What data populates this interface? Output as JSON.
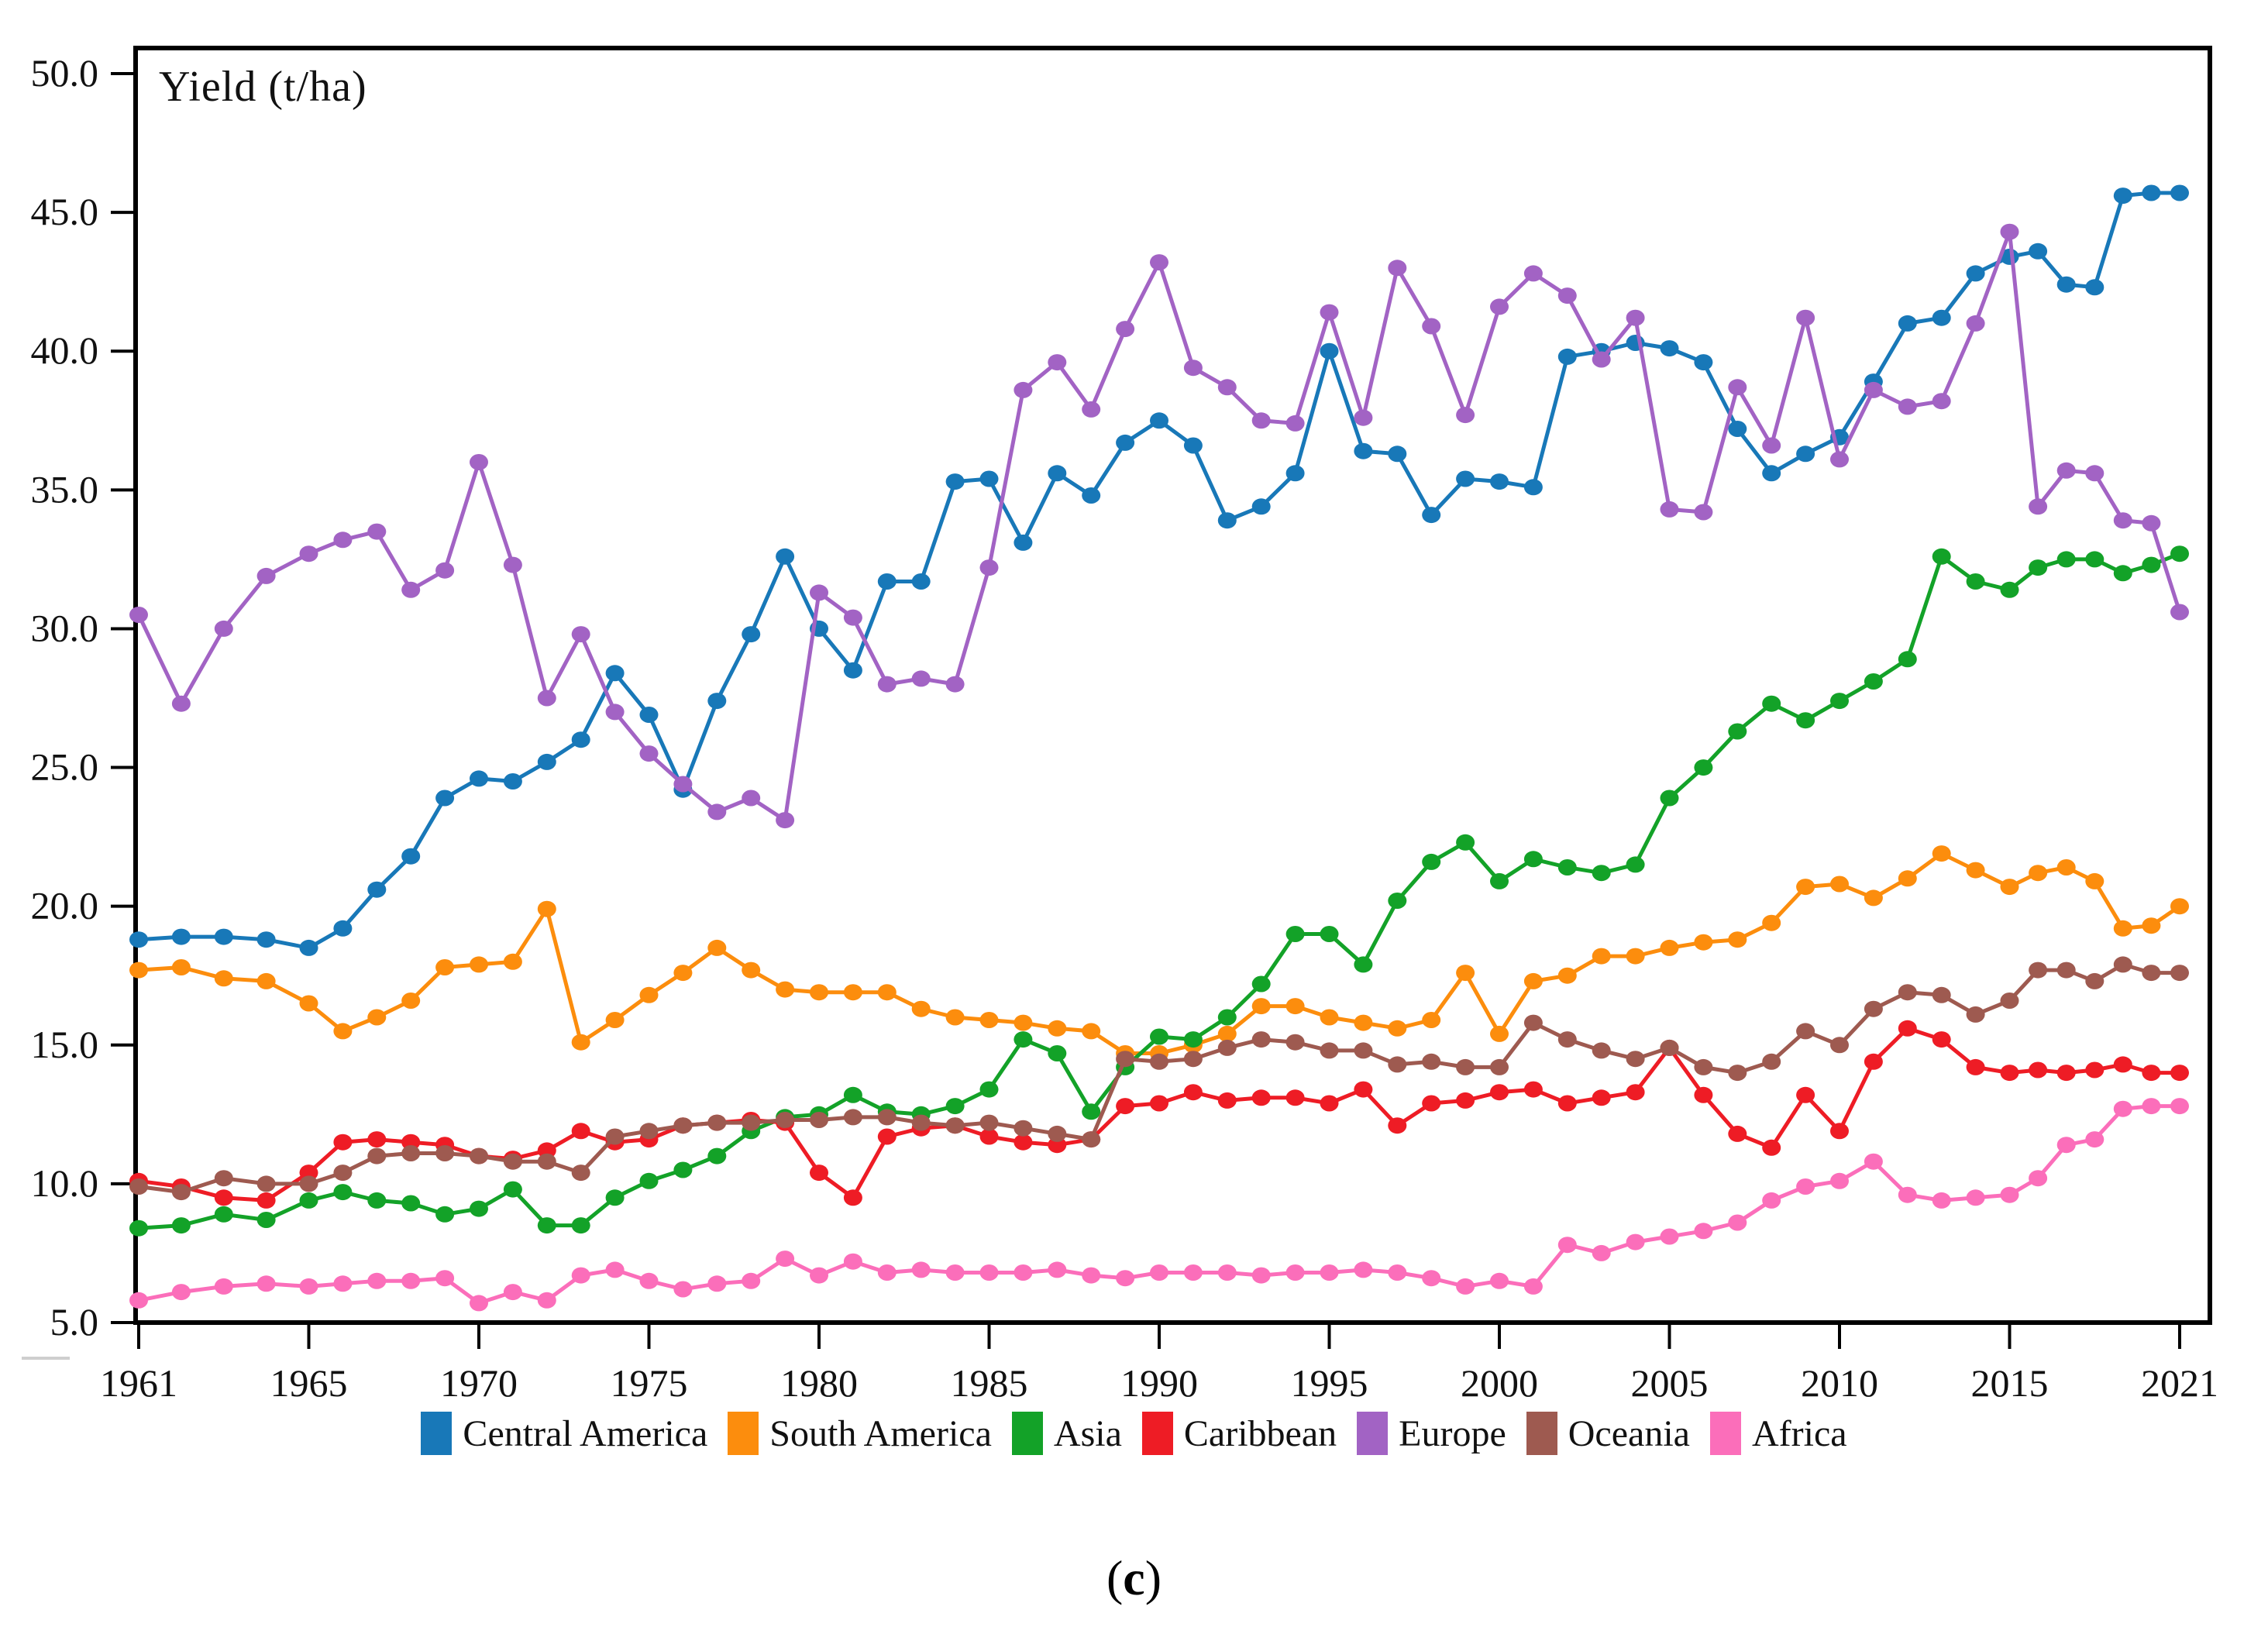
{
  "figure": {
    "caption_open": "(",
    "caption_letter": "c",
    "caption_close": ")"
  },
  "chart_data": {
    "type": "line",
    "title": "",
    "xlabel": "",
    "ylabel": "Yield (t/ha)",
    "ylim": [
      5.0,
      50.0
    ],
    "grid": false,
    "legend_position": "bottom",
    "ytick_labels": [
      "50.0",
      "45.0",
      "40.0",
      "35.0",
      "30.0",
      "25.0",
      "20.0",
      "15.0",
      "10.0",
      "5.0"
    ],
    "ytick_values": [
      50,
      45,
      40,
      35,
      30,
      25,
      20,
      15,
      10,
      5
    ],
    "xtick_labels": [
      "1961",
      "1965",
      "1970",
      "1975",
      "1980",
      "1985",
      "1990",
      "1995",
      "2000",
      "2005",
      "2010",
      "2015",
      "2021"
    ],
    "xtick_years": [
      1961,
      1965,
      1970,
      1975,
      1980,
      1985,
      1990,
      1995,
      2000,
      2005,
      2010,
      2015,
      2021
    ],
    "x_start_year": 1961,
    "x_end_year": 2021,
    "series": [
      {
        "name": "Central America",
        "color": "#1878b8",
        "values": [
          18.8,
          18.9,
          18.9,
          18.8,
          18.5,
          19.2,
          20.6,
          21.8,
          23.9,
          24.6,
          24.5,
          25.2,
          26.0,
          28.4,
          26.9,
          24.2,
          27.4,
          29.8,
          32.6,
          30.0,
          28.5,
          31.7,
          31.7,
          35.3,
          35.4,
          33.1,
          35.6,
          34.8,
          36.7,
          37.5,
          36.6,
          33.9,
          34.4,
          35.6,
          40.0,
          36.4,
          36.3,
          34.1,
          35.4,
          35.3,
          35.1,
          39.8,
          40.0,
          40.3,
          40.1,
          39.6,
          37.2,
          35.6,
          36.3,
          36.9,
          38.9,
          41.0,
          41.2,
          42.8,
          43.4,
          43.6,
          42.4,
          42.3,
          45.6,
          45.7,
          45.7
        ]
      },
      {
        "name": "South America",
        "color": "#fc8d0d",
        "values": [
          17.7,
          17.8,
          17.4,
          17.3,
          16.5,
          15.5,
          16.0,
          16.6,
          17.8,
          17.9,
          18.0,
          19.9,
          15.1,
          15.9,
          16.8,
          17.6,
          18.5,
          17.7,
          17.0,
          16.9,
          16.9,
          16.9,
          16.3,
          16.0,
          15.9,
          15.8,
          15.6,
          15.5,
          14.7,
          14.7,
          15.0,
          15.4,
          16.4,
          16.4,
          16.0,
          15.8,
          15.6,
          15.9,
          17.6,
          15.4,
          17.3,
          17.5,
          18.2,
          18.2,
          18.5,
          18.7,
          18.8,
          19.4,
          20.7,
          20.8,
          20.3,
          21.0,
          21.9,
          21.3,
          20.7,
          21.2,
          21.4,
          20.9,
          19.2,
          19.3,
          20.0
        ]
      },
      {
        "name": "Asia",
        "color": "#13a228",
        "values": [
          8.4,
          8.5,
          8.9,
          8.7,
          9.4,
          9.7,
          9.4,
          9.3,
          8.9,
          9.1,
          9.8,
          8.5,
          8.5,
          9.5,
          10.1,
          10.5,
          11.0,
          11.9,
          12.4,
          12.5,
          13.2,
          12.6,
          12.5,
          12.8,
          13.4,
          15.2,
          14.7,
          12.6,
          14.2,
          15.3,
          15.2,
          16.0,
          17.2,
          19.0,
          19.0,
          17.9,
          20.2,
          21.6,
          22.3,
          20.9,
          21.7,
          21.4,
          21.2,
          21.5,
          23.9,
          25.0,
          26.3,
          27.3,
          26.7,
          27.4,
          28.1,
          28.9,
          32.6,
          31.7,
          31.4,
          32.2,
          32.5,
          32.5,
          32.0,
          32.3,
          32.7
        ]
      },
      {
        "name": "Caribbean",
        "color": "#ee1c25",
        "values": [
          10.1,
          9.9,
          9.5,
          9.4,
          10.4,
          11.5,
          11.6,
          11.5,
          11.4,
          11.0,
          10.9,
          11.2,
          11.9,
          11.5,
          11.6,
          12.1,
          12.2,
          12.3,
          12.2,
          10.4,
          9.5,
          11.7,
          12.0,
          12.1,
          11.7,
          11.5,
          11.4,
          11.6,
          12.8,
          12.9,
          13.3,
          13.0,
          13.1,
          13.1,
          12.9,
          13.4,
          12.1,
          12.9,
          13.0,
          13.3,
          13.4,
          12.9,
          13.1,
          13.3,
          14.9,
          13.2,
          11.8,
          11.3,
          13.2,
          11.9,
          14.4,
          15.6,
          15.2,
          14.2,
          14.0,
          14.1,
          14.0,
          14.1,
          14.3,
          14.0,
          14.0
        ]
      },
      {
        "name": "Europe",
        "color": "#a263c4",
        "values": [
          30.5,
          27.3,
          30.0,
          31.9,
          32.7,
          33.2,
          33.5,
          31.4,
          32.1,
          36.0,
          32.3,
          27.5,
          29.8,
          27.0,
          25.5,
          24.4,
          23.4,
          23.9,
          23.1,
          31.3,
          30.4,
          28.0,
          28.2,
          28.0,
          32.2,
          38.6,
          39.6,
          37.9,
          40.8,
          43.2,
          39.4,
          38.7,
          37.5,
          37.4,
          41.4,
          37.6,
          43.0,
          40.9,
          37.7,
          41.6,
          42.8,
          42.0,
          39.7,
          41.2,
          34.3,
          34.2,
          38.7,
          36.6,
          41.2,
          36.1,
          38.6,
          38.0,
          38.2,
          41.0,
          44.3,
          34.4,
          35.7,
          35.6,
          33.9,
          33.8,
          30.6
        ]
      },
      {
        "name": "Oceania",
        "color": "#9e5a50",
        "values": [
          9.9,
          9.7,
          10.2,
          10.0,
          10.0,
          10.4,
          11.0,
          11.1,
          11.1,
          11.0,
          10.8,
          10.8,
          10.4,
          11.7,
          11.9,
          12.1,
          12.2,
          12.2,
          12.3,
          12.3,
          12.4,
          12.4,
          12.2,
          12.1,
          12.2,
          12.0,
          11.8,
          11.6,
          14.5,
          14.4,
          14.5,
          14.9,
          15.2,
          15.1,
          14.8,
          14.8,
          14.3,
          14.4,
          14.2,
          14.2,
          15.8,
          15.2,
          14.8,
          14.5,
          14.9,
          14.2,
          14.0,
          14.4,
          15.5,
          15.0,
          16.3,
          16.9,
          16.8,
          16.1,
          16.6,
          17.7,
          17.7,
          17.3,
          17.9,
          17.6,
          17.6
        ]
      },
      {
        "name": "Africa",
        "color": "#fb6eba",
        "values": [
          5.8,
          6.1,
          6.3,
          6.4,
          6.3,
          6.4,
          6.5,
          6.5,
          6.6,
          5.7,
          6.1,
          5.8,
          6.7,
          6.9,
          6.5,
          6.2,
          6.4,
          6.5,
          7.3,
          6.7,
          7.2,
          6.8,
          6.9,
          6.8,
          6.8,
          6.8,
          6.9,
          6.7,
          6.6,
          6.8,
          6.8,
          6.8,
          6.7,
          6.8,
          6.8,
          6.9,
          6.8,
          6.6,
          6.3,
          6.5,
          6.3,
          7.8,
          7.5,
          7.9,
          8.1,
          8.3,
          8.6,
          9.4,
          9.9,
          10.1,
          10.8,
          9.6,
          9.4,
          9.5,
          9.6,
          10.2,
          11.4,
          11.6,
          12.7,
          12.8,
          12.8
        ]
      }
    ]
  }
}
